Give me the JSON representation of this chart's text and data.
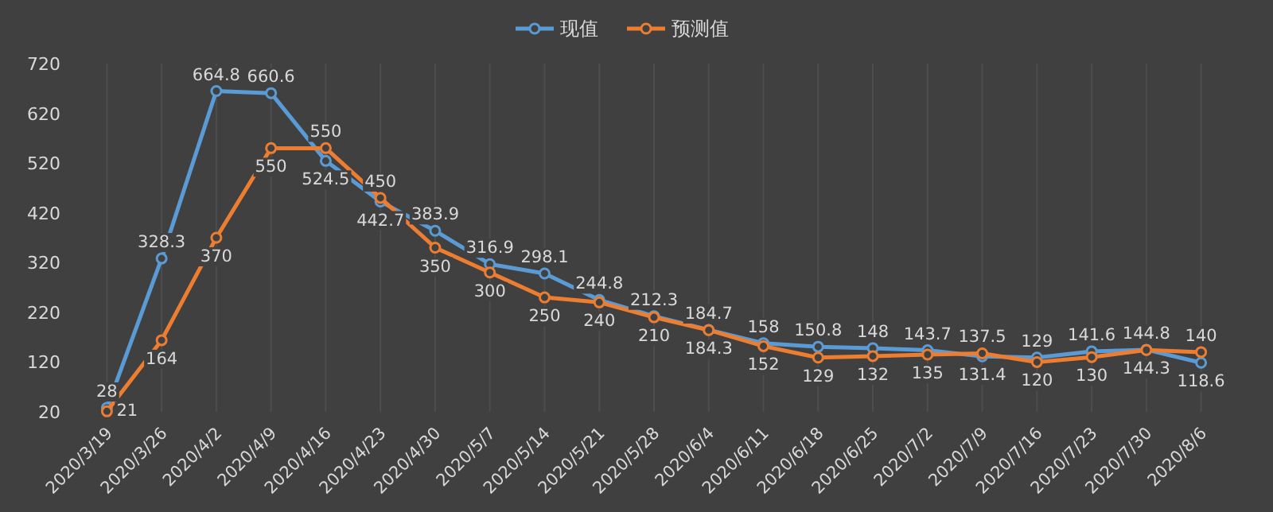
{
  "chart_data": {
    "type": "line",
    "categories": [
      "2020/3/19",
      "2020/3/26",
      "2020/4/2",
      "2020/4/9",
      "2020/4/16",
      "2020/4/23",
      "2020/4/30",
      "2020/5/7",
      "2020/5/14",
      "2020/5/21",
      "2020/5/28",
      "2020/6/4",
      "2020/6/11",
      "2020/6/18",
      "2020/6/25",
      "2020/7/2",
      "2020/7/9",
      "2020/7/16",
      "2020/7/23",
      "2020/7/30",
      "2020/8/6"
    ],
    "series": [
      {
        "name": "现值",
        "color": "#5b9bd5",
        "values": [
          28,
          328.3,
          664.8,
          660.6,
          524.5,
          442.7,
          383.9,
          316.9,
          298.1,
          244.8,
          212.3,
          184.7,
          158,
          150.8,
          148,
          143.7,
          131.4,
          129,
          141.6,
          144.8,
          118.6
        ]
      },
      {
        "name": "预测值",
        "color": "#ed7d31",
        "values": [
          21,
          164,
          370,
          550,
          550,
          450,
          350,
          300,
          250,
          240,
          210,
          184.3,
          152,
          129,
          132,
          135,
          137.5,
          120,
          130,
          144.3,
          140
        ]
      }
    ],
    "ylim": [
      20,
      720
    ],
    "yticks": [
      20,
      120,
      220,
      320,
      420,
      520,
      620,
      720
    ],
    "grid": "x",
    "legend": "top",
    "marker": "circle",
    "data_labels": true
  }
}
